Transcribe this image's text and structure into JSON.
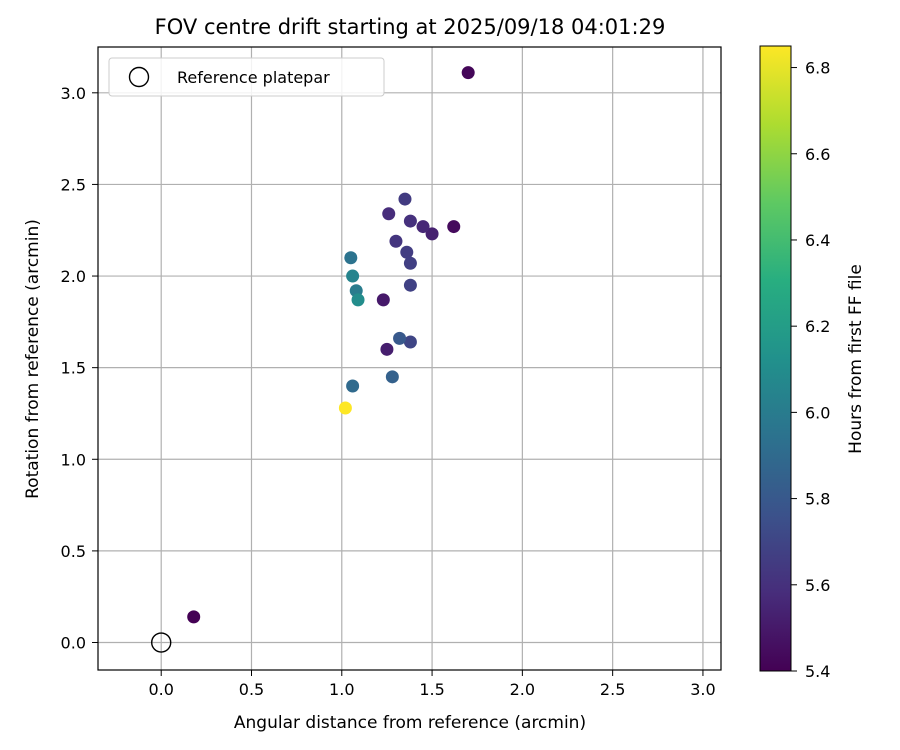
{
  "chart_data": {
    "type": "scatter",
    "title": "FOV centre drift starting at 2025/09/18 04:01:29",
    "xlabel": "Angular distance from reference (arcmin)",
    "ylabel": "Rotation from reference (arcmin)",
    "xlim": [
      -0.35,
      3.1
    ],
    "ylim": [
      -0.15,
      3.25
    ],
    "xticks": [
      "0.0",
      "0.5",
      "1.0",
      "1.5",
      "2.0",
      "2.5",
      "3.0"
    ],
    "xtick_values": [
      0.0,
      0.5,
      1.0,
      1.5,
      2.0,
      2.5,
      3.0
    ],
    "yticks": [
      "0.0",
      "0.5",
      "1.0",
      "1.5",
      "2.0",
      "2.5",
      "3.0"
    ],
    "ytick_values": [
      0.0,
      0.5,
      1.0,
      1.5,
      2.0,
      2.5,
      3.0
    ],
    "grid": true,
    "legend": {
      "placement": "top-left",
      "entries": [
        "Reference platepar"
      ]
    },
    "reference_point": {
      "x": 0.0,
      "y": 0.0,
      "marker": "open-circle"
    },
    "colorbar": {
      "label": "Hours from first FF file",
      "range": [
        5.4,
        6.85
      ],
      "colormap": "viridis",
      "ticks": [
        "5.4",
        "5.6",
        "5.8",
        "6.0",
        "6.2",
        "6.4",
        "6.6",
        "6.8"
      ],
      "tick_values": [
        5.4,
        5.6,
        5.8,
        6.0,
        6.2,
        6.4,
        6.6,
        6.8
      ]
    },
    "points": [
      {
        "x": 0.18,
        "y": 0.14,
        "c": 5.4
      },
      {
        "x": 1.7,
        "y": 3.11,
        "c": 5.42
      },
      {
        "x": 1.62,
        "y": 2.27,
        "c": 5.44
      },
      {
        "x": 1.23,
        "y": 1.87,
        "c": 5.5
      },
      {
        "x": 1.25,
        "y": 1.6,
        "c": 5.52
      },
      {
        "x": 1.5,
        "y": 2.23,
        "c": 5.53
      },
      {
        "x": 1.45,
        "y": 2.27,
        "c": 5.56
      },
      {
        "x": 1.38,
        "y": 2.3,
        "c": 5.6
      },
      {
        "x": 1.26,
        "y": 2.34,
        "c": 5.58
      },
      {
        "x": 1.3,
        "y": 2.19,
        "c": 5.62
      },
      {
        "x": 1.35,
        "y": 2.42,
        "c": 5.65
      },
      {
        "x": 1.36,
        "y": 2.13,
        "c": 5.66
      },
      {
        "x": 1.38,
        "y": 2.07,
        "c": 5.67
      },
      {
        "x": 1.38,
        "y": 1.95,
        "c": 5.68
      },
      {
        "x": 1.38,
        "y": 1.64,
        "c": 5.7
      },
      {
        "x": 1.32,
        "y": 1.66,
        "c": 5.8
      },
      {
        "x": 1.28,
        "y": 1.45,
        "c": 5.85
      },
      {
        "x": 1.06,
        "y": 1.4,
        "c": 5.9
      },
      {
        "x": 1.05,
        "y": 2.1,
        "c": 5.95
      },
      {
        "x": 1.08,
        "y": 1.92,
        "c": 6.0
      },
      {
        "x": 1.06,
        "y": 2.0,
        "c": 6.05
      },
      {
        "x": 1.09,
        "y": 1.87,
        "c": 6.1
      },
      {
        "x": 1.02,
        "y": 1.28,
        "c": 6.85
      }
    ]
  }
}
